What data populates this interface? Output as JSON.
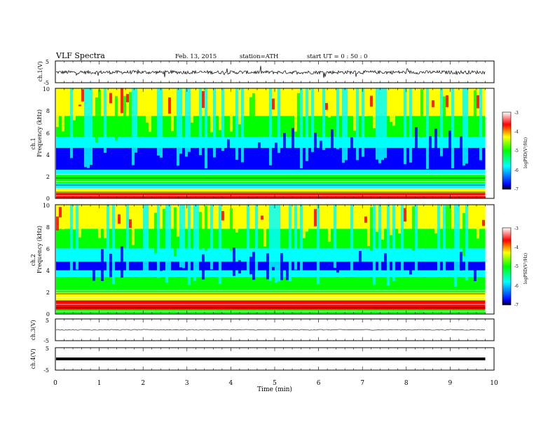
{
  "header": {
    "title": "VLF Spectra",
    "date": "Feb. 13, 2015",
    "station": "station=ATH",
    "start": "start UT = 0 : 50 : 0"
  },
  "x_axis": {
    "label": "Time (min)",
    "range": [
      0,
      10
    ],
    "ticks": [
      "0",
      "1",
      "2",
      "3",
      "4",
      "5",
      "6",
      "7",
      "8",
      "9",
      "10"
    ],
    "data_end": 9.8
  },
  "panels": {
    "ch1_wave": {
      "ylabel": "ch.1(V)",
      "yrange": [
        -5,
        5
      ],
      "ticks": [
        "5",
        "-5"
      ]
    },
    "ch1_spec": {
      "ylabel_ch": "ch.1",
      "ylabel": "Frequency (kHz)",
      "yrange": [
        0,
        10
      ],
      "ticks": [
        "0",
        "2",
        "4",
        "6",
        "8",
        "10"
      ]
    },
    "ch2_spec": {
      "ylabel_ch": "ch.2",
      "ylabel": "Frequency (kHz)",
      "yrange": [
        0,
        10
      ],
      "ticks": [
        "0",
        "2",
        "4",
        "6",
        "8",
        "10"
      ]
    },
    "ch3_wave": {
      "ylabel": "ch.3(V)",
      "yrange": [
        -5,
        5
      ],
      "ticks": [
        "5",
        "-5"
      ]
    },
    "ch4_wave": {
      "ylabel": "ch.4(V)",
      "yrange": [
        -5,
        5
      ],
      "ticks": [
        "5",
        "-5"
      ]
    }
  },
  "colorbar": {
    "label": "logPSD(V²/Hz)",
    "range": [
      -7,
      -3
    ],
    "ticks": [
      "-3",
      "-4",
      "-5",
      "-6",
      "-7"
    ],
    "colors": [
      "#000000",
      "#0000ff",
      "#00ffff",
      "#00ff00",
      "#ffff00",
      "#ff0000",
      "#ffffff"
    ]
  },
  "chart_data": [
    {
      "type": "line",
      "title": "VLF Spectra",
      "ylabel": "ch.1(V)",
      "xlabel": "Time (min)",
      "xlim": [
        0,
        10
      ],
      "ylim": [
        -5,
        5
      ],
      "baseline": -0.2
    },
    {
      "type": "heatmap",
      "ylabel": "Frequency (kHz)",
      "xlim": [
        0,
        10
      ],
      "ylim": [
        0,
        10
      ],
      "zlim": [
        -7,
        -3
      ],
      "colorbar_label": "logPSD(V²/Hz)"
    },
    {
      "type": "heatmap",
      "ylabel": "Frequency (kHz)",
      "xlim": [
        0,
        10
      ],
      "ylim": [
        0,
        10
      ],
      "zlim": [
        -7,
        -3
      ],
      "colorbar_label": "logPSD(V²/Hz)"
    },
    {
      "type": "line",
      "ylabel": "ch.3(V)",
      "xlim": [
        0,
        10
      ],
      "ylim": [
        -5,
        5
      ],
      "baseline": 0.0
    },
    {
      "type": "line",
      "ylabel": "ch.4(V)",
      "xlim": [
        0,
        10
      ],
      "ylim": [
        -5,
        5
      ],
      "baseline": 0.0
    }
  ]
}
